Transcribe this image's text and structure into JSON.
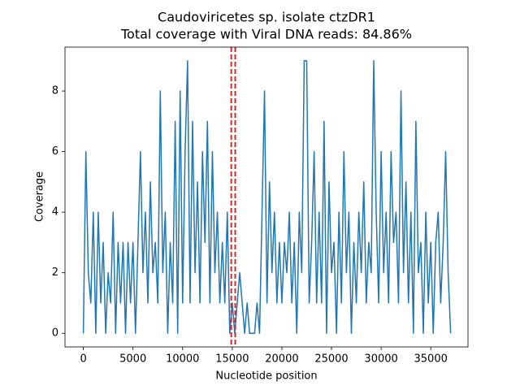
{
  "chart_data": {
    "type": "line",
    "title": [
      "Caudoviricetes sp. isolate ctzDR1",
      "Total coverage with Viral DNA reads: 84.86%"
    ],
    "xlabel": "Nucleotide position",
    "ylabel": "Coverage",
    "xlim": [
      -1850,
      38750
    ],
    "ylim": [
      -0.45,
      9.45
    ],
    "xticks": [
      0,
      5000,
      10000,
      15000,
      20000,
      25000,
      30000,
      35000
    ],
    "yticks": [
      0,
      2,
      4,
      6,
      8
    ],
    "x": [
      0,
      250,
      500,
      750,
      1000,
      1250,
      1500,
      1750,
      2000,
      2250,
      2500,
      2750,
      3000,
      3250,
      3500,
      3750,
      4000,
      4250,
      4500,
      4750,
      5000,
      5250,
      5500,
      5750,
      6000,
      6250,
      6500,
      6750,
      7000,
      7250,
      7500,
      7750,
      8000,
      8250,
      8500,
      8750,
      9000,
      9250,
      9500,
      9750,
      10000,
      10250,
      10500,
      10750,
      11000,
      11250,
      11500,
      11750,
      12000,
      12250,
      12500,
      12750,
      13000,
      13250,
      13500,
      13750,
      14000,
      14250,
      14500,
      14750,
      15000,
      15250,
      15500,
      15750,
      16000,
      16250,
      16500,
      16750,
      17000,
      17250,
      17500,
      17750,
      18000,
      18250,
      18500,
      18750,
      19000,
      19250,
      19500,
      19750,
      20000,
      20250,
      20500,
      20750,
      21000,
      21250,
      21500,
      21750,
      22000,
      22250,
      22500,
      22750,
      23000,
      23250,
      23500,
      23750,
      24000,
      24250,
      24500,
      24750,
      25000,
      25250,
      25500,
      25750,
      26000,
      26250,
      26500,
      26750,
      27000,
      27250,
      27500,
      27750,
      28000,
      28250,
      28500,
      28750,
      29000,
      29250,
      29500,
      29750,
      30000,
      30250,
      30500,
      30750,
      31000,
      31250,
      31500,
      31750,
      32000,
      32250,
      32500,
      32750,
      33000,
      33250,
      33500,
      33750,
      34000,
      34250,
      34500,
      34750,
      35000,
      35250,
      35500,
      35750,
      36000,
      36250,
      36500,
      36750,
      37000
    ],
    "series": [
      {
        "color": "#1f77b4",
        "values": [
          0,
          6,
          2,
          1,
          4,
          0,
          4,
          1,
          3,
          0,
          2,
          1,
          4,
          0,
          3,
          1,
          3,
          0,
          3,
          1,
          3,
          0,
          3,
          6,
          2,
          4,
          1,
          5,
          2,
          3,
          1,
          8,
          2,
          4,
          0,
          3,
          1,
          7,
          0,
          8,
          1,
          6,
          9,
          1,
          7,
          2,
          5,
          1,
          6,
          3,
          7,
          1,
          6,
          2,
          4,
          1,
          3,
          1,
          4,
          0,
          1,
          0,
          1,
          2,
          1,
          0,
          1,
          0,
          0,
          0,
          1,
          0,
          4,
          8,
          1,
          5,
          2,
          4,
          1,
          3,
          1,
          3,
          2,
          4,
          1,
          3,
          0,
          4,
          2,
          9,
          9,
          1,
          3,
          6,
          1,
          4,
          1,
          7,
          0,
          5,
          2,
          3,
          0,
          4,
          1,
          6,
          2,
          4,
          0,
          3,
          1,
          4,
          2,
          5,
          1,
          3,
          2,
          9,
          4,
          1,
          6,
          2,
          4,
          1,
          6,
          3,
          4,
          1,
          8,
          2,
          5,
          1,
          4,
          0,
          7,
          2,
          3,
          0,
          4,
          1,
          3,
          0,
          3,
          4,
          1,
          3,
          6,
          2,
          0
        ]
      }
    ],
    "vlines": [
      14900,
      15300
    ],
    "vline_color": "#d62728"
  }
}
